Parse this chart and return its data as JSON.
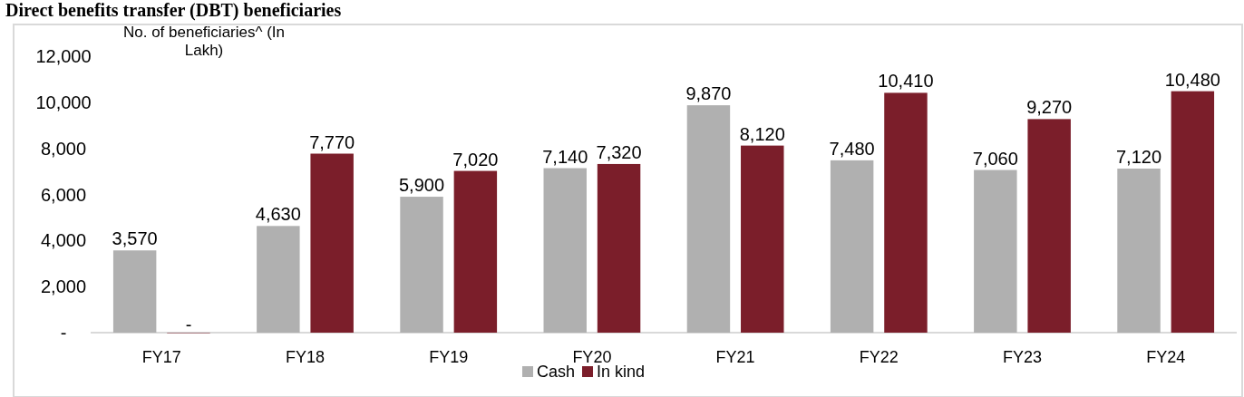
{
  "chart_data": {
    "type": "bar",
    "title": "Direct benefits transfer (DBT) beneficiaries",
    "ylabel": "No. of beneficiaries^ (In Lakh)",
    "categories": [
      "FY17",
      "FY18",
      "FY19",
      "FY20",
      "FY21",
      "FY22",
      "FY23",
      "FY24"
    ],
    "series": [
      {
        "name": "Cash",
        "color": "#b0b0b0",
        "values": [
          3570,
          4630,
          5900,
          7140,
          9870,
          7480,
          7060,
          7120
        ],
        "value_labels": [
          "3,570",
          "4,630",
          "5,900",
          "7,140",
          "9,870",
          "7,480",
          "7,060",
          "7,120"
        ]
      },
      {
        "name": "In kind",
        "color": "#7b1e2a",
        "values": [
          0,
          7770,
          7020,
          7320,
          8120,
          10410,
          9270,
          10480
        ],
        "value_labels": [
          "-",
          "7,770",
          "7,020",
          "7,320",
          "8,120",
          "10,410",
          "9,270",
          "10,480"
        ]
      }
    ],
    "ylim": [
      0,
      12000
    ],
    "yticks": [
      {
        "value": 0,
        "label": "-"
      },
      {
        "value": 2000,
        "label": "2,000"
      },
      {
        "value": 4000,
        "label": "4,000"
      },
      {
        "value": 6000,
        "label": "6,000"
      },
      {
        "value": 8000,
        "label": "8,000"
      },
      {
        "value": 10000,
        "label": "10,000"
      },
      {
        "value": 12000,
        "label": "12,000"
      }
    ],
    "legend": "bottom"
  }
}
